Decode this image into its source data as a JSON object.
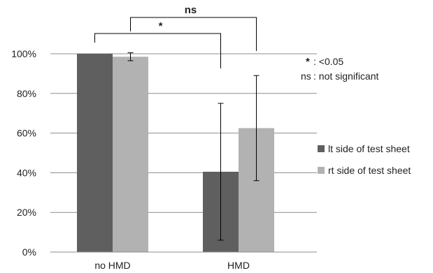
{
  "chart_data": {
    "type": "bar",
    "categories": [
      "no HMD",
      "HMD"
    ],
    "series": [
      {
        "name": "lt side of test sheet",
        "color": "#5f5f5f",
        "values": [
          100,
          40.5
        ],
        "error": [
          0,
          34.5
        ]
      },
      {
        "name": "rt side of test sheet",
        "color": "#b2b2b2",
        "values": [
          98.5,
          62.5
        ],
        "error": [
          2,
          26.5
        ]
      }
    ],
    "ylim": [
      0,
      100
    ],
    "yticks": [
      0,
      20,
      40,
      60,
      80,
      100
    ],
    "ytick_labels": [
      "0%",
      "20%",
      "40%",
      "60%",
      "80%",
      "100%"
    ],
    "title": "",
    "xlabel": "",
    "ylabel": "",
    "grid": true,
    "legend_position": "right",
    "significance": [
      {
        "label": "*",
        "from": {
          "category": "no HMD",
          "series": "lt side of test sheet"
        },
        "to": {
          "category": "HMD",
          "series": "lt side of test sheet"
        }
      },
      {
        "label": "ns",
        "from": {
          "category": "no HMD",
          "series": "rt side of test sheet"
        },
        "to": {
          "category": "HMD",
          "series": "rt side of test sheet"
        }
      }
    ],
    "notes": [
      {
        "symbol": "*",
        "text": ": <0.05"
      },
      {
        "symbol": "ns",
        "text": ": not significant"
      }
    ]
  }
}
